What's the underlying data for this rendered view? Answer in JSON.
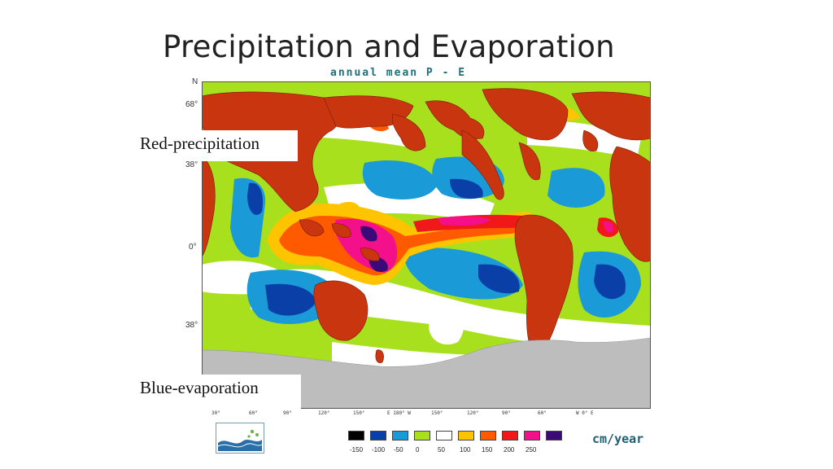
{
  "slide": {
    "title": "Precipitation and Evaporation"
  },
  "map": {
    "subtitle": "annual mean P - E",
    "north_label": "N",
    "lat_labels": [
      "68°",
      "38°",
      "0°",
      "38°"
    ],
    "lon_labels": [
      "30°",
      "60°",
      "90°",
      "120°",
      "150°",
      "E 180° W",
      "150°",
      "120°",
      "90°",
      "60°",
      "W 0° E"
    ],
    "colors": {
      "land": "#c8350e",
      "ice": "#bdbdbd",
      "ocean_zero": "#ffffff"
    }
  },
  "callouts": {
    "red": "Red-precipitation",
    "blue": "Blue-evaporation"
  },
  "legend": {
    "swatches": [
      {
        "color": "#000000",
        "label": "-150"
      },
      {
        "color": "#0a3fa8",
        "label": "-100"
      },
      {
        "color": "#1a9ad6",
        "label": "-50"
      },
      {
        "color": "#a8e01e",
        "label": "0"
      },
      {
        "color": "#ffffff",
        "label": "50"
      },
      {
        "color": "#ffc400",
        "label": "100"
      },
      {
        "color": "#ff5a00",
        "label": "150"
      },
      {
        "color": "#f01818",
        "label": "200"
      },
      {
        "color": "#f4108a",
        "label": "250"
      },
      {
        "color": "#3c0a78",
        "label": ""
      }
    ],
    "units": "cm/year"
  }
}
